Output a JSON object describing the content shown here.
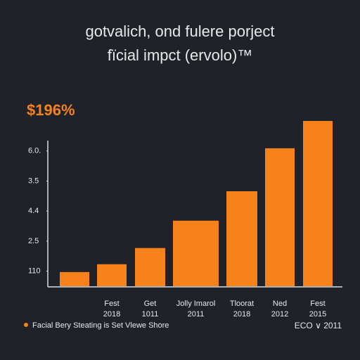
{
  "chart_data": {
    "type": "bar",
    "title": "gotvalich, ond fulere porject",
    "subtitle": "fïcial impct (ervolo)™",
    "annotation": "$196%",
    "categories": [
      null,
      [
        "Fest",
        "2018"
      ],
      [
        "Get",
        "1011"
      ],
      [
        "Jolly  Imarol",
        "2011"
      ],
      [
        "Tloorat",
        "2018"
      ],
      [
        "Ned",
        "2012"
      ],
      [
        "Fest",
        "2015"
      ]
    ],
    "values": [
      0.97,
      1.23,
      1.77,
      2.68,
      3.66,
      5.09,
      6.0
    ],
    "color": "#f7821b",
    "ylim": [
      0.5,
      6.0
    ],
    "yticks": [
      {
        "value": 1,
        "label": "110"
      },
      {
        "value": 2,
        "label": "2.5"
      },
      {
        "value": 3,
        "label": "4.4"
      },
      {
        "value": 4,
        "label": "3.5"
      },
      {
        "value": 5,
        "label": "6.0."
      }
    ],
    "legend": "Facial Bery Steating is Set Vlewe Shore",
    "footer": "ECO ∨ 2011"
  }
}
